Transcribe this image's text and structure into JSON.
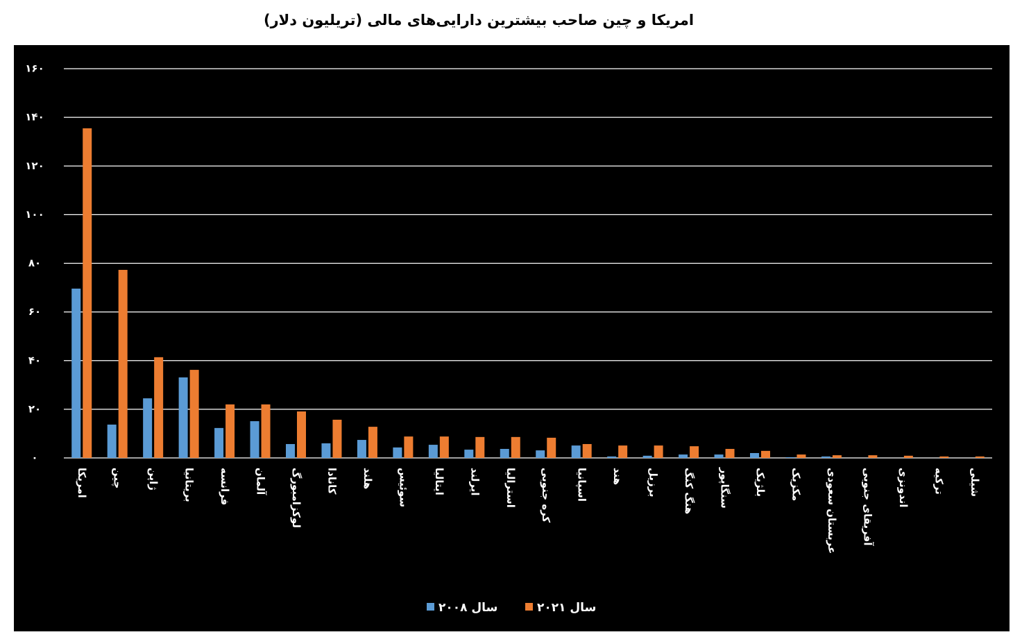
{
  "chart_data": {
    "type": "bar",
    "title": "امریکا و چین صاحب بیشترین دارایی‌های مالی (تریلیون دلار)",
    "categories": [
      "امریکا",
      "چین",
      "ژاپن",
      "بریتانیا",
      "فرانسه",
      "آلمان",
      "لوکزامبورگ",
      "کانادا",
      "هلند",
      "سوئیس",
      "ایتالیا",
      "ایرلند",
      "استرالیا",
      "کره جنوبی",
      "اسپانیا",
      "هند",
      "برزیل",
      "هنگ کنگ",
      "سنگاپور",
      "بلژیک",
      "مکزیک",
      "عربستان سعودی",
      "آفریقای جنوبی",
      "اندونزی",
      "ترکیه",
      "شیلی"
    ],
    "series": [
      {
        "name": "سال ۲۰۰۸",
        "color": "#5b9bd5",
        "values": [
          69.6,
          13.7,
          24.5,
          33.1,
          12.3,
          15.1,
          5.7,
          6,
          7.4,
          4.3,
          5.4,
          3.4,
          3.7,
          3.1,
          5.1,
          0.6,
          0.9,
          1.4,
          1.4,
          2,
          0.3,
          0.6,
          0,
          0,
          0,
          0
        ]
      },
      {
        "name": "سال ۲۰۲۱",
        "color": "#ed7d31",
        "values": [
          135.5,
          77.3,
          41.4,
          36.2,
          22,
          22,
          19.1,
          15.7,
          12.8,
          8.8,
          8.8,
          8.6,
          8.6,
          8.3,
          5.7,
          5.1,
          5.1,
          4.8,
          3.7,
          2.9,
          1.4,
          1.1,
          1.1,
          0.9,
          0.6,
          0.6
        ]
      }
    ],
    "ylim": [
      0,
      160
    ],
    "yticks": [
      {
        "value": 0,
        "label": "۰"
      },
      {
        "value": 20,
        "label": "۲۰"
      },
      {
        "value": 40,
        "label": "۴۰"
      },
      {
        "value": 60,
        "label": "۶۰"
      },
      {
        "value": 80,
        "label": "۸۰"
      },
      {
        "value": 100,
        "label": "۱۰۰"
      },
      {
        "value": 120,
        "label": "۱۲۰"
      },
      {
        "value": 140,
        "label": "۱۴۰"
      },
      {
        "value": 160,
        "label": "۱۶۰"
      }
    ],
    "grid": true,
    "legend": "bottom"
  }
}
